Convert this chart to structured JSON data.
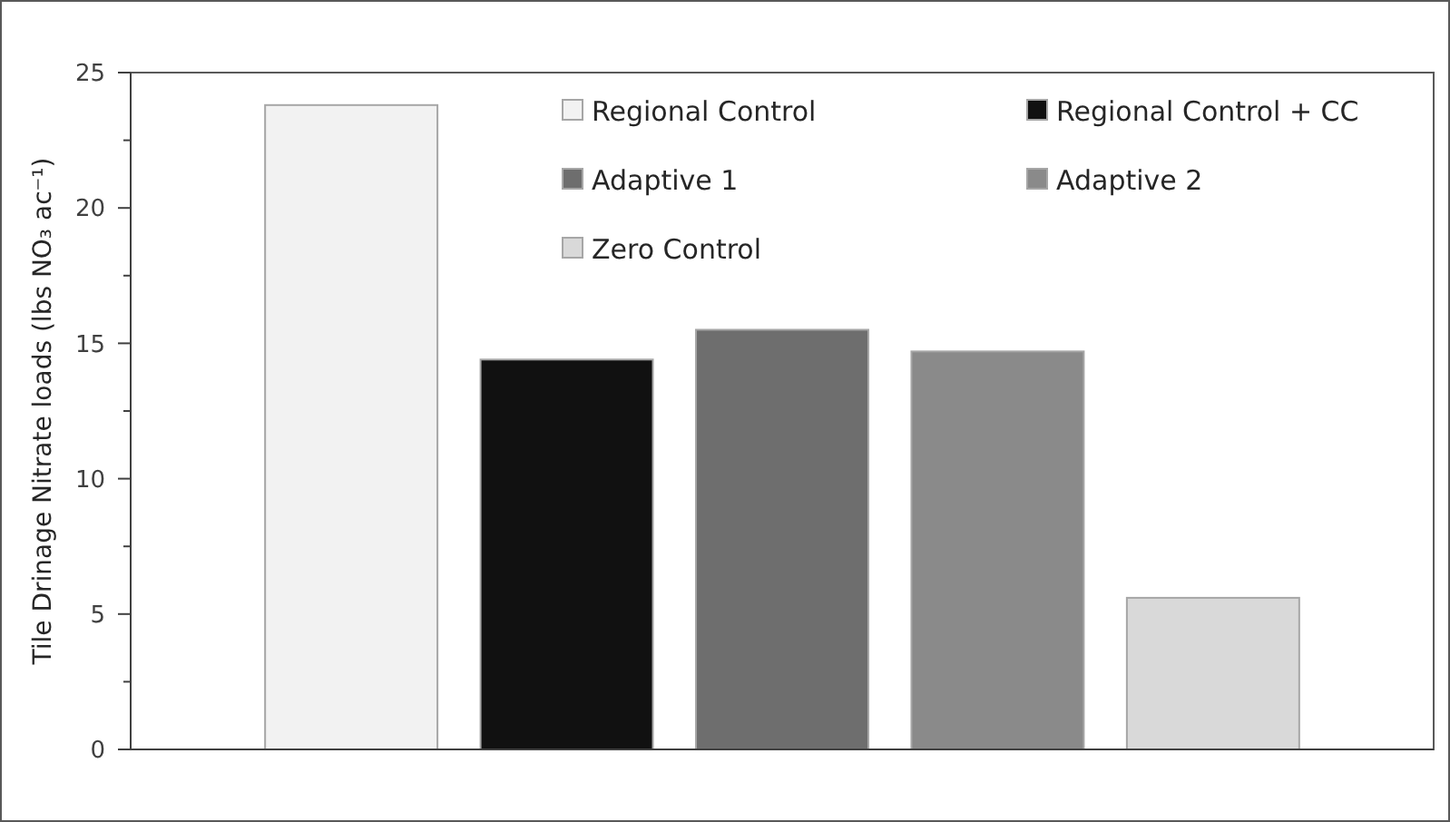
{
  "chart_data": {
    "type": "bar",
    "ylabel": "Tile Drinage Nitrate loads (lbs NO₃ ac⁻¹)",
    "categories": [
      null
    ],
    "series": [
      {
        "name": "Regional Control",
        "color": "#f2f2f2",
        "values": [
          23.8
        ]
      },
      {
        "name": "Regional Control + CC",
        "color": "#111111",
        "values": [
          14.4
        ]
      },
      {
        "name": "Adaptive 1",
        "color": "#6e6e6e",
        "values": [
          15.5
        ]
      },
      {
        "name": "Adaptive 2",
        "color": "#8a8a8a",
        "values": [
          14.7
        ]
      },
      {
        "name": "Zero Control",
        "color": "#d9d9d9",
        "values": [
          5.6
        ]
      }
    ],
    "ylim": [
      0,
      25
    ],
    "yticks": [
      0,
      {
        "value": 2.5,
        "label": null
      },
      5,
      {
        "value": 7.5,
        "label": null
      },
      10,
      {
        "value": 12.5,
        "label": null
      },
      15,
      {
        "value": 17.5,
        "label": null
      },
      20,
      {
        "value": 22.5,
        "label": null
      },
      25
    ],
    "grid": false,
    "legend": "top right"
  }
}
